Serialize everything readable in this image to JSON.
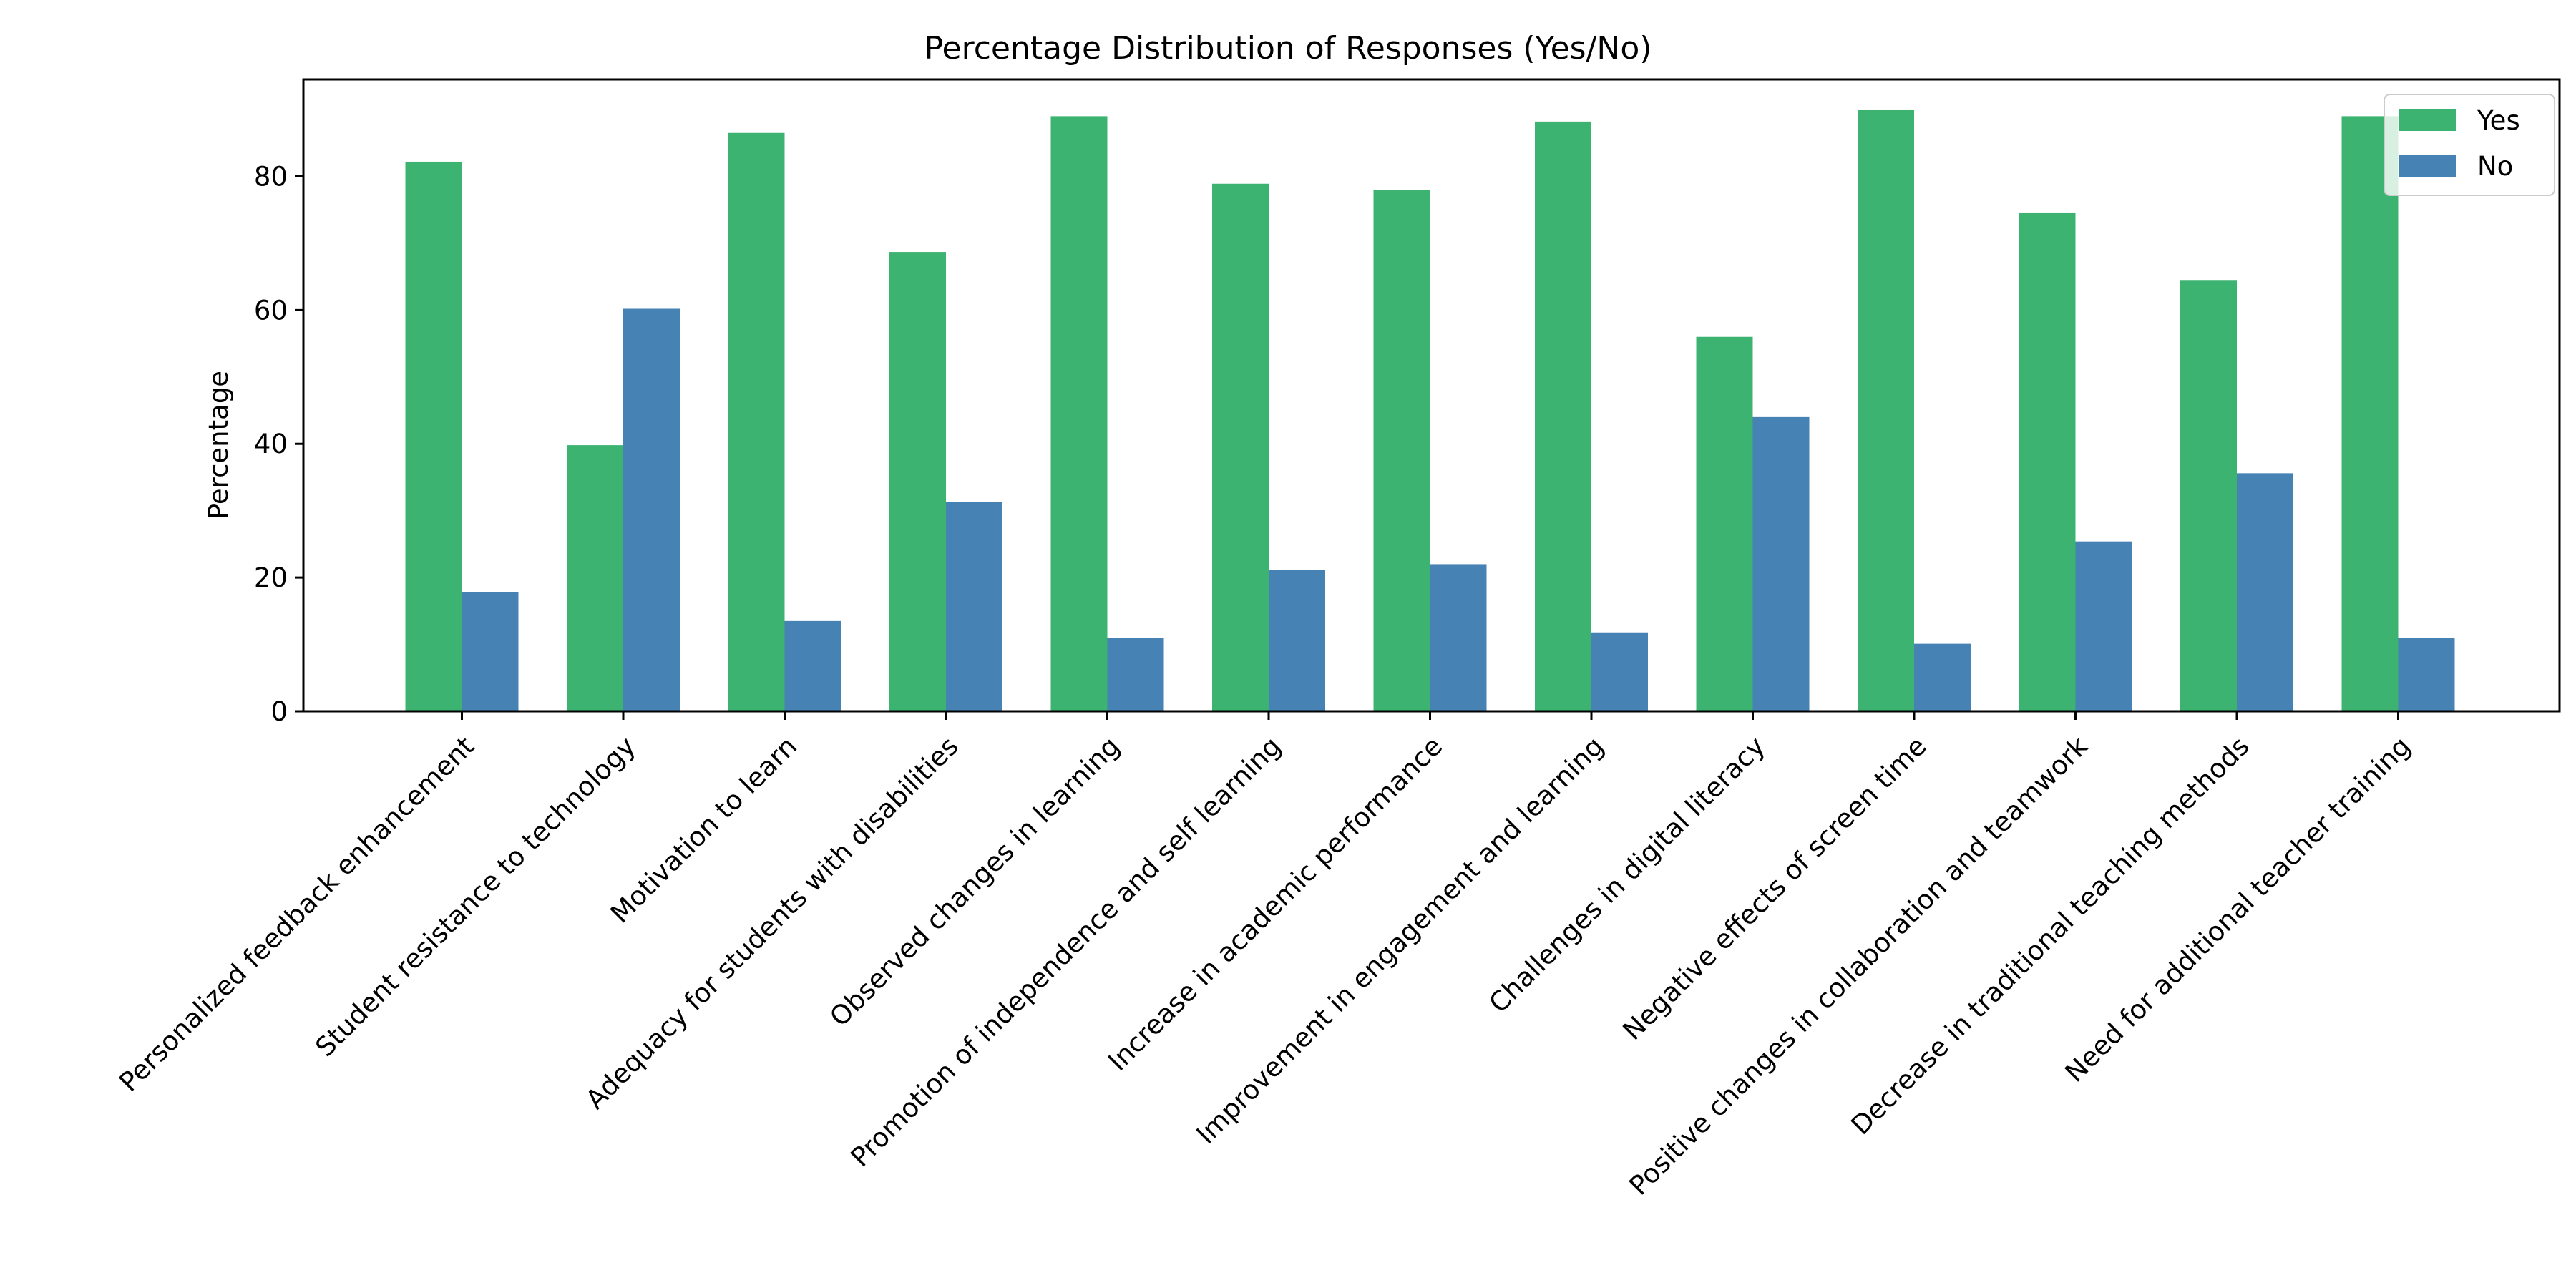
{
  "chart_data": {
    "type": "bar",
    "title": "Percentage Distribution of Responses (Yes/No)",
    "xlabel": "",
    "ylabel": "Percentage",
    "ylim": [
      0,
      94.5
    ],
    "yticks": [
      0,
      20,
      40,
      60,
      80
    ],
    "grid": false,
    "legend_position": "top-right",
    "categories": [
      "Personalized feedback enhancement",
      "Student resistance to technology",
      "Motivation to learn",
      "Adequacy for students with disabilities",
      "Observed changes in learning",
      "Promotion of independence and self learning",
      "Increase in academic performance",
      "Improvement in engagement and learning",
      "Challenges in digital literacy",
      "Negative effects of screen time",
      "Positive changes in collaboration and teamwork",
      "Decrease in traditional teaching methods",
      "Need for additional teacher training"
    ],
    "series": [
      {
        "name": "Yes",
        "color": "#3cb371",
        "values": [
          82.2,
          39.8,
          86.5,
          68.7,
          89.0,
          78.9,
          78.0,
          88.2,
          56.0,
          89.9,
          74.6,
          64.4,
          89.0
        ]
      },
      {
        "name": "No",
        "color": "#4682b4",
        "values": [
          17.8,
          60.2,
          13.5,
          31.3,
          11.0,
          21.1,
          22.0,
          11.8,
          44.0,
          10.1,
          25.4,
          35.6,
          11.0
        ]
      }
    ]
  }
}
